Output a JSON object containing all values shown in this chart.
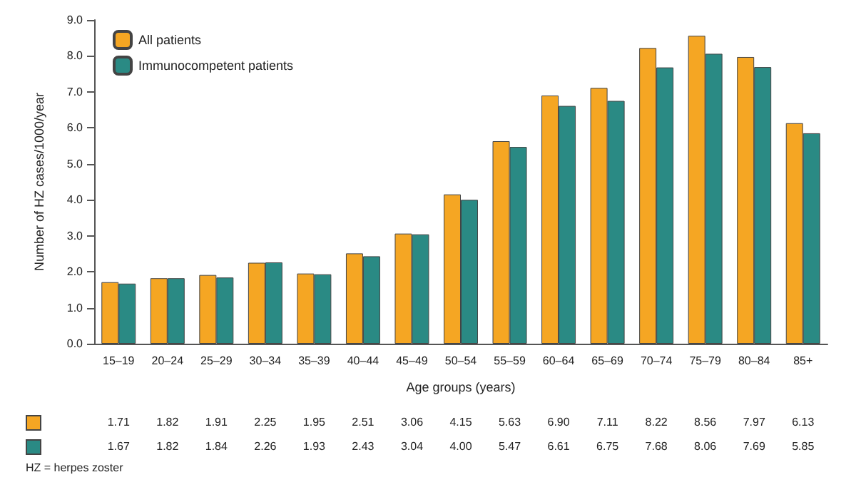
{
  "chart_data": {
    "type": "bar",
    "xlabel": "Age groups (years)",
    "ylabel": "Number of HZ cases/1000/year",
    "categories": [
      "15–19",
      "20–24",
      "25–29",
      "30–34",
      "35–39",
      "40–44",
      "45–49",
      "50–54",
      "55–59",
      "60–64",
      "65–69",
      "70–74",
      "75–79",
      "80–84",
      "85+"
    ],
    "series": [
      {
        "name": "All patients",
        "color": "#f5a623",
        "values": [
          1.71,
          1.82,
          1.91,
          2.25,
          1.95,
          2.51,
          3.06,
          4.15,
          5.63,
          6.9,
          7.11,
          8.22,
          8.56,
          7.97,
          6.13
        ],
        "value_labels": [
          "1.71",
          "1.82",
          "1.91",
          "2.25",
          "1.95",
          "2.51",
          "3.06",
          "4.15",
          "5.63",
          "6.90",
          "7.11",
          "8.22",
          "8.56",
          "7.97",
          "6.13"
        ]
      },
      {
        "name": "Immunocompetent patients",
        "color": "#2a8a84",
        "values": [
          1.67,
          1.82,
          1.84,
          2.26,
          1.93,
          2.43,
          3.04,
          4.0,
          5.47,
          6.61,
          6.75,
          7.68,
          8.06,
          7.69,
          5.85
        ],
        "value_labels": [
          "1.67",
          "1.82",
          "1.84",
          "2.26",
          "1.93",
          "2.43",
          "3.04",
          "4.00",
          "5.47",
          "6.61",
          "6.75",
          "7.68",
          "8.06",
          "7.69",
          "5.85"
        ]
      }
    ],
    "ylim": [
      0,
      9
    ],
    "yticks": [
      {
        "value": 0,
        "label": "0.0"
      },
      {
        "value": 1,
        "label": "1.0"
      },
      {
        "value": 2,
        "label": "2.0"
      },
      {
        "value": 3,
        "label": "3.0"
      },
      {
        "value": 4,
        "label": "4.0"
      },
      {
        "value": 5,
        "label": "5.0"
      },
      {
        "value": 6,
        "label": "6.0"
      },
      {
        "value": 7,
        "label": "7.0"
      },
      {
        "value": 8,
        "label": "8.0"
      },
      {
        "value": 9,
        "label": "9.0"
      }
    ],
    "grid": false,
    "legend": "top left",
    "annotations": [
      "HZ = herpes zoster"
    ]
  }
}
